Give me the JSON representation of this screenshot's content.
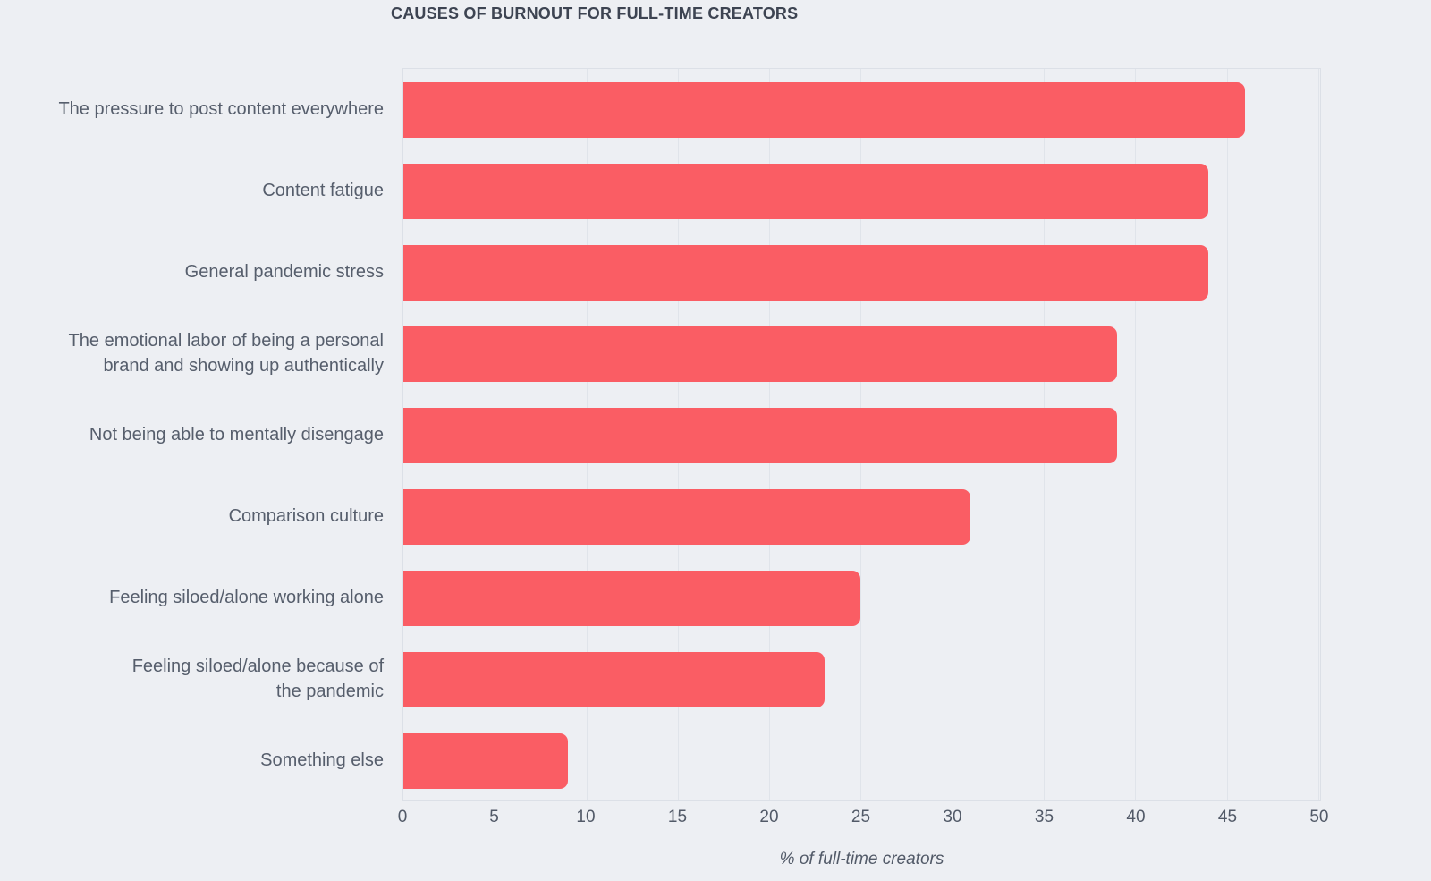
{
  "page": {
    "background": "#edeff3"
  },
  "chart_data": {
    "type": "bar",
    "orientation": "horizontal",
    "title": "CAUSES OF BURNOUT FOR FULL-TIME CREATORS",
    "categories": [
      "The pressure to post content everywhere",
      "Content fatigue",
      "General pandemic stress",
      "The emotional labor of being a personal\nbrand and showing up authentically",
      "Not being able to mentally disengage",
      "Comparison culture",
      "Feeling siloed/alone working alone",
      "Feeling siloed/alone because of\nthe pandemic",
      "Something else"
    ],
    "values": [
      46,
      44,
      44,
      39,
      39,
      31,
      25,
      23,
      9
    ],
    "xlabel": "% of full-time creators",
    "xticks": [
      0,
      5,
      10,
      15,
      20,
      25,
      30,
      35,
      40,
      45,
      50
    ],
    "xlim": [
      0,
      50.1
    ],
    "grid": true,
    "legend": false,
    "data_labels": false,
    "colors": {
      "bar": "#fa5d64",
      "background": "#edeff3",
      "gridline": "#e0e4ea",
      "plot_border": "#dce0e7",
      "title_text": "#3d4452",
      "label_text": "#565e6c",
      "tick_text": "#525a68"
    }
  }
}
